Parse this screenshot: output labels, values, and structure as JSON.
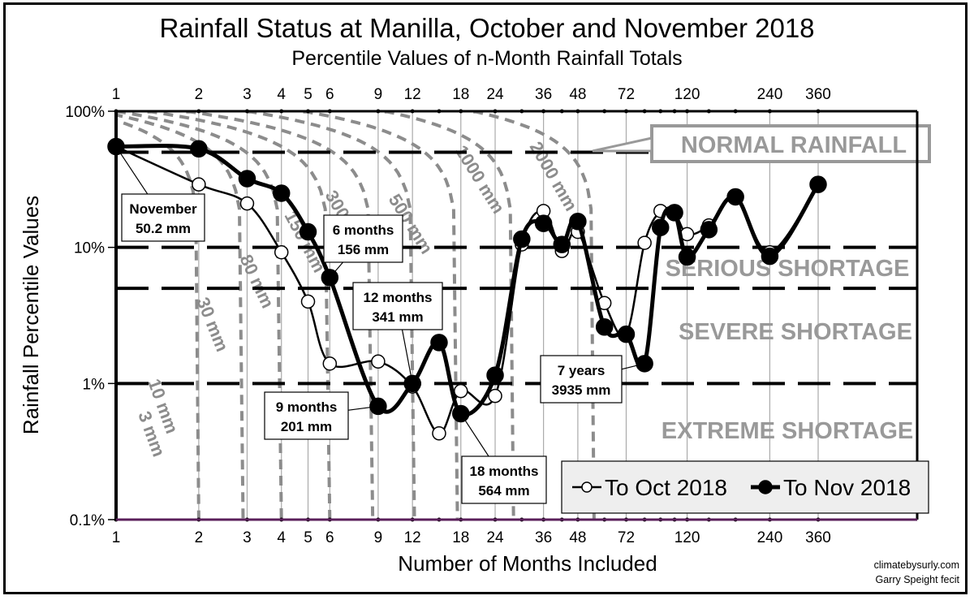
{
  "chart_data": {
    "type": "line",
    "title": "Rainfall Status at Manilla, October and November 2018",
    "subtitle": "Percentile Values of n-Month Rainfall Totals",
    "xlabel": "Number of Months Included",
    "ylabel": "Rainfall Percentile Values",
    "x_scale": "log",
    "y_scale": "log",
    "xlim": [
      1,
      360
    ],
    "ylim": [
      0.1,
      100
    ],
    "x_ticks": [
      1,
      2,
      3,
      4,
      5,
      6,
      9,
      12,
      18,
      24,
      36,
      48,
      72,
      120,
      240,
      360
    ],
    "y_ticks": [
      {
        "value": 100,
        "label": "100%"
      },
      {
        "value": 10,
        "label": "10%"
      },
      {
        "value": 1,
        "label": "1%"
      },
      {
        "value": 0.1,
        "label": "0.1%"
      }
    ],
    "x": [
      1,
      2,
      3,
      4,
      5,
      6,
      9,
      12,
      15,
      18,
      24,
      30,
      36,
      42,
      48,
      60,
      72,
      84,
      96,
      108,
      120,
      144,
      180,
      240,
      360
    ],
    "series": [
      {
        "name": "To Oct 2018",
        "marker": "open-circle",
        "values": [
          55,
          29,
          21,
          9.2,
          4.0,
          1.4,
          1.45,
          0.95,
          0.43,
          0.88,
          0.81,
          10.5,
          18.5,
          9.4,
          13,
          3.9,
          2.3,
          10.8,
          18.5,
          18,
          12.5,
          14.5,
          23.5,
          9.2,
          29
        ]
      },
      {
        "name": "To Nov 2018",
        "marker": "filled-circle",
        "values": [
          55,
          53,
          32,
          25,
          13,
          6.0,
          0.68,
          1.0,
          2.0,
          0.6,
          1.15,
          11.5,
          15,
          10.5,
          15.5,
          2.6,
          2.3,
          1.4,
          14,
          18,
          8.5,
          13.5,
          23.5,
          8.6,
          29
        ]
      }
    ],
    "threshold_lines": [
      {
        "value": 50,
        "style": "dashed"
      },
      {
        "value": 10,
        "style": "dashed"
      },
      {
        "value": 5,
        "style": "dashed"
      },
      {
        "value": 1,
        "style": "dashed"
      }
    ],
    "zone_labels": [
      {
        "text": "NORMAL RAINFALL",
        "boxed": true
      },
      {
        "text": "SERIOUS SHORTAGE"
      },
      {
        "text": "SEVERE SHORTAGE"
      },
      {
        "text": "EXTREME SHORTAGE"
      }
    ],
    "isohyets": [
      {
        "label": "3 mm"
      },
      {
        "label": "10 mm"
      },
      {
        "label": "30 mm"
      },
      {
        "label": "80 mm"
      },
      {
        "label": "150 mm"
      },
      {
        "label": "300 mm"
      },
      {
        "label": "500 mm"
      },
      {
        "label": "1000 mm"
      },
      {
        "label": "2000 mm"
      }
    ],
    "annotations": [
      {
        "line1": "November",
        "line2": "50.2 mm",
        "x": 1
      },
      {
        "line1": "6 months",
        "line2": "156 mm",
        "x": 6
      },
      {
        "line1": "9 months",
        "line2": "201 mm",
        "x": 9
      },
      {
        "line1": "12 months",
        "line2": "341 mm",
        "x": 12
      },
      {
        "line1": "18 months",
        "line2": "564 mm",
        "x": 18
      },
      {
        "line1": "7 years",
        "line2": "3935 mm",
        "x": 84
      }
    ],
    "legend": {
      "position": "bottom-right",
      "entries": [
        "To Oct 2018",
        "To Nov 2018"
      ]
    },
    "grid": {
      "vertical": true,
      "horizontal": false
    }
  },
  "credits": {
    "line1": "climatebysurly.com",
    "line2": "Garry Speight fecit"
  }
}
